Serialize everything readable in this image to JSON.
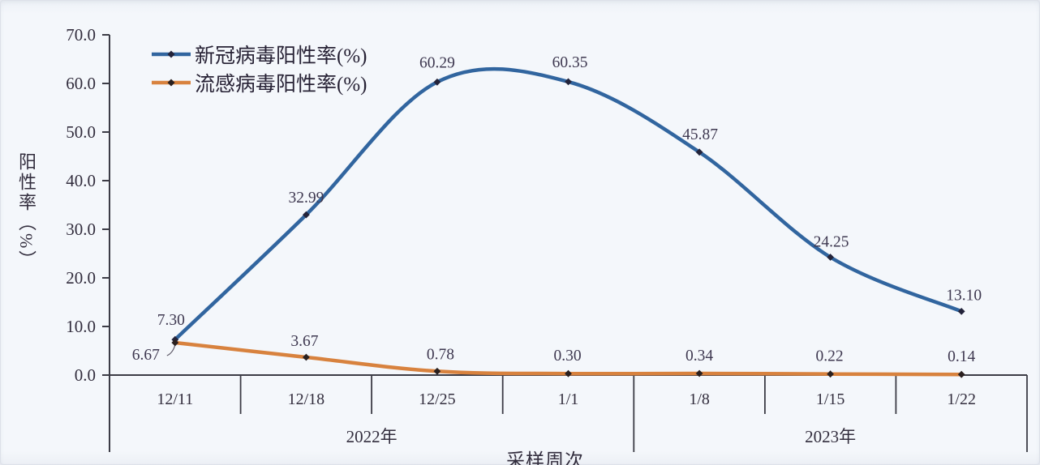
{
  "chart_data": {
    "type": "line",
    "title": "",
    "xlabel": "采样周次",
    "ylabel": "阳性率（%）",
    "ylim": [
      0,
      70
    ],
    "ytick_step": 10,
    "ytick_labels": [
      "0.0",
      "10.0",
      "20.0",
      "30.0",
      "40.0",
      "50.0",
      "60.0",
      "70.0"
    ],
    "categories": [
      "12/11",
      "12/18",
      "12/25",
      "1/1",
      "1/8",
      "1/15",
      "1/22"
    ],
    "year_groups": [
      {
        "label": "2022年",
        "span": 4
      },
      {
        "label": "2023年",
        "span": 3
      }
    ],
    "grid": false,
    "legend_position": "top-left",
    "series": [
      {
        "name": "新冠病毒阳性率(%)",
        "color": "#31659f",
        "marker_color": "#23233a",
        "smooth": true,
        "values": [
          7.3,
          32.99,
          60.29,
          60.35,
          45.87,
          24.25,
          13.1
        ],
        "point_labels": [
          "7.30",
          "32.99",
          "60.29",
          "60.35",
          "45.87",
          "24.25",
          "13.10"
        ],
        "label_offsets": [
          [
            -5,
            -18
          ],
          [
            0,
            -15
          ],
          [
            0,
            -18
          ],
          [
            2,
            -18
          ],
          [
            1,
            -16
          ],
          [
            1,
            -13
          ],
          [
            3,
            -14
          ]
        ]
      },
      {
        "name": "流感病毒阳性率(%)",
        "color": "#d8823e",
        "marker_color": "#2a201f",
        "smooth": true,
        "values": [
          6.67,
          3.67,
          0.78,
          0.3,
          0.34,
          0.22,
          0.14
        ],
        "point_labels": [
          "6.67",
          "3.67",
          "0.78",
          "0.30",
          "0.34",
          "0.22",
          "0.14"
        ],
        "label_offsets": [
          [
            -36,
            21
          ],
          [
            -2,
            -14
          ],
          [
            4,
            -15
          ],
          [
            -1,
            -16
          ],
          [
            0,
            -16
          ],
          [
            -1,
            -16
          ],
          [
            0,
            -16
          ]
        ],
        "leader_point": 0
      }
    ],
    "colors": {
      "background": "#f4f7fb",
      "axis": "#3c3c46",
      "text": "#322d3d"
    }
  }
}
